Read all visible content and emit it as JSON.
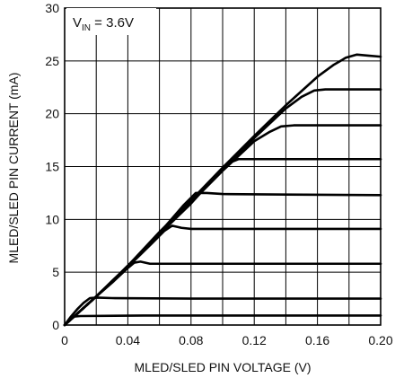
{
  "chart_data": {
    "type": "line",
    "title": "",
    "xlabel": "MLED/SLED PIN VOLTAGE (V)",
    "ylabel": "MLED/SLED PIN CURRENT (mA)",
    "xlim": [
      0,
      0.2
    ],
    "ylim": [
      0,
      30
    ],
    "x_ticks": [
      "0",
      "0.04",
      "0.08",
      "0.12",
      "0.16",
      "0.20"
    ],
    "y_ticks": [
      "0",
      "5",
      "10",
      "15",
      "20",
      "25",
      "30"
    ],
    "grid": true,
    "annotation": {
      "main": "V",
      "sub": "IN",
      "rest": " = 3.6V"
    },
    "series": [
      {
        "values": [
          [
            0,
            0
          ],
          [
            0.003,
            0.5
          ],
          [
            0.006,
            0.8
          ],
          [
            0.01,
            0.85
          ],
          [
            0.05,
            0.9
          ],
          [
            0.1,
            0.9
          ],
          [
            0.15,
            0.9
          ],
          [
            0.2,
            0.9
          ]
        ]
      },
      {
        "values": [
          [
            0,
            0
          ],
          [
            0.004,
            0.8
          ],
          [
            0.008,
            1.5
          ],
          [
            0.012,
            2.1
          ],
          [
            0.016,
            2.55
          ],
          [
            0.02,
            2.6
          ],
          [
            0.03,
            2.55
          ],
          [
            0.08,
            2.5
          ],
          [
            0.14,
            2.5
          ],
          [
            0.2,
            2.5
          ]
        ]
      },
      {
        "values": [
          [
            0,
            0
          ],
          [
            0.02,
            2.7
          ],
          [
            0.03,
            4.0
          ],
          [
            0.04,
            5.4
          ],
          [
            0.044,
            5.9
          ],
          [
            0.048,
            6.0
          ],
          [
            0.054,
            5.8
          ],
          [
            0.06,
            5.8
          ],
          [
            0.1,
            5.8
          ],
          [
            0.2,
            5.8
          ]
        ]
      },
      {
        "values": [
          [
            0,
            0
          ],
          [
            0.02,
            2.7
          ],
          [
            0.04,
            5.5
          ],
          [
            0.055,
            7.7
          ],
          [
            0.063,
            8.9
          ],
          [
            0.068,
            9.4
          ],
          [
            0.074,
            9.2
          ],
          [
            0.08,
            9.1
          ],
          [
            0.12,
            9.1
          ],
          [
            0.2,
            9.1
          ]
        ]
      },
      {
        "values": [
          [
            0,
            0
          ],
          [
            0.02,
            2.7
          ],
          [
            0.04,
            5.6
          ],
          [
            0.06,
            8.7
          ],
          [
            0.075,
            11.3
          ],
          [
            0.083,
            12.5
          ],
          [
            0.09,
            12.5
          ],
          [
            0.1,
            12.4
          ],
          [
            0.14,
            12.35
          ],
          [
            0.2,
            12.3
          ]
        ]
      },
      {
        "values": [
          [
            0,
            0
          ],
          [
            0.02,
            2.7
          ],
          [
            0.04,
            5.6
          ],
          [
            0.06,
            8.6
          ],
          [
            0.08,
            11.5
          ],
          [
            0.095,
            14.0
          ],
          [
            0.105,
            15.4
          ],
          [
            0.11,
            15.7
          ],
          [
            0.12,
            15.7
          ],
          [
            0.16,
            15.7
          ],
          [
            0.2,
            15.7
          ]
        ]
      },
      {
        "values": [
          [
            0,
            0
          ],
          [
            0.02,
            2.7
          ],
          [
            0.04,
            5.6
          ],
          [
            0.06,
            8.7
          ],
          [
            0.08,
            11.6
          ],
          [
            0.1,
            14.6
          ],
          [
            0.12,
            17.4
          ],
          [
            0.13,
            18.3
          ],
          [
            0.137,
            18.8
          ],
          [
            0.145,
            18.9
          ],
          [
            0.16,
            18.9
          ],
          [
            0.2,
            18.9
          ]
        ]
      },
      {
        "values": [
          [
            0,
            0
          ],
          [
            0.02,
            2.7
          ],
          [
            0.04,
            5.6
          ],
          [
            0.06,
            8.7
          ],
          [
            0.08,
            11.7
          ],
          [
            0.1,
            14.8
          ],
          [
            0.12,
            17.7
          ],
          [
            0.14,
            20.5
          ],
          [
            0.15,
            21.6
          ],
          [
            0.158,
            22.2
          ],
          [
            0.165,
            22.3
          ],
          [
            0.2,
            22.3
          ]
        ]
      },
      {
        "values": [
          [
            0,
            0
          ],
          [
            0.02,
            2.7
          ],
          [
            0.04,
            5.6
          ],
          [
            0.06,
            8.8
          ],
          [
            0.08,
            11.8
          ],
          [
            0.1,
            14.9
          ],
          [
            0.12,
            17.9
          ],
          [
            0.14,
            20.8
          ],
          [
            0.16,
            23.5
          ],
          [
            0.17,
            24.6
          ],
          [
            0.178,
            25.3
          ],
          [
            0.185,
            25.6
          ],
          [
            0.192,
            25.5
          ],
          [
            0.2,
            25.4
          ]
        ]
      }
    ]
  }
}
